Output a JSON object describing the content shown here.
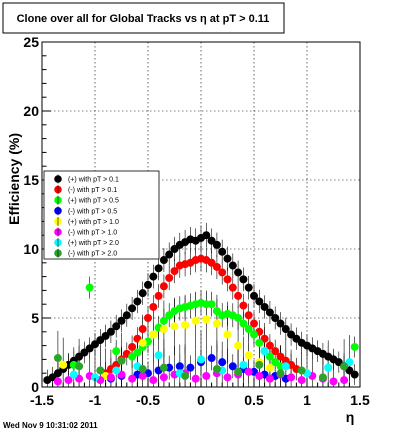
{
  "chart_data": {
    "type": "scatter",
    "title": "Clone  over all for Global Tracks vs η at pT > 0.11",
    "xlabel": "η",
    "ylabel": "Efficiency (%)",
    "xlim": [
      -1.5,
      1.5
    ],
    "ylim": [
      0,
      25
    ],
    "x_ticks": [
      -1.5,
      -1,
      -0.5,
      0,
      0.5,
      1,
      1.5
    ],
    "x_tick_labels": [
      "-1.5",
      "-1",
      "-0.5",
      "0",
      "0.5",
      "1",
      "1.5"
    ],
    "y_ticks": [
      0,
      5,
      10,
      15,
      20,
      25
    ],
    "y_tick_labels": [
      "0",
      "5",
      "10",
      "15",
      "20",
      "25"
    ],
    "grid": true,
    "legend_position": "middle-left",
    "footer": "Wed Nov  9 10:31:02 2011",
    "series": [
      {
        "name": "(+) with pT > 0.1",
        "color": "#000000",
        "x": [
          -1.45,
          -1.4,
          -1.35,
          -1.3,
          -1.25,
          -1.2,
          -1.15,
          -1.1,
          -1.05,
          -1.0,
          -0.95,
          -0.9,
          -0.85,
          -0.8,
          -0.75,
          -0.7,
          -0.65,
          -0.6,
          -0.55,
          -0.5,
          -0.45,
          -0.4,
          -0.35,
          -0.3,
          -0.25,
          -0.2,
          -0.15,
          -0.1,
          -0.05,
          0.0,
          0.05,
          0.1,
          0.15,
          0.2,
          0.25,
          0.3,
          0.35,
          0.4,
          0.45,
          0.5,
          0.55,
          0.6,
          0.65,
          0.7,
          0.75,
          0.8,
          0.85,
          0.9,
          0.95,
          1.0,
          1.05,
          1.1,
          1.15,
          1.2,
          1.25,
          1.3,
          1.35,
          1.4,
          1.45
        ],
        "y": [
          0.5,
          0.7,
          1.0,
          1.3,
          1.6,
          1.9,
          2.2,
          2.5,
          2.8,
          3.1,
          3.4,
          3.7,
          4.0,
          4.4,
          4.8,
          5.2,
          5.7,
          6.2,
          6.8,
          7.4,
          8.0,
          8.6,
          9.2,
          9.6,
          10.0,
          10.3,
          10.5,
          10.7,
          10.6,
          10.8,
          11.0,
          10.6,
          10.3,
          9.8,
          9.3,
          8.8,
          8.3,
          7.8,
          7.2,
          6.6,
          6.2,
          5.8,
          5.4,
          5.0,
          4.6,
          4.2,
          3.8,
          3.5,
          3.2,
          3.0,
          2.8,
          2.6,
          2.4,
          2.2,
          2.0,
          1.8,
          1.5,
          1.2,
          0.9
        ]
      },
      {
        "name": "(-) with pT > 0.1",
        "color": "#ff0000",
        "x": [
          -0.9,
          -0.85,
          -0.8,
          -0.75,
          -0.7,
          -0.65,
          -0.6,
          -0.55,
          -0.5,
          -0.45,
          -0.4,
          -0.35,
          -0.3,
          -0.25,
          -0.2,
          -0.15,
          -0.1,
          -0.05,
          0.0,
          0.05,
          0.1,
          0.15,
          0.2,
          0.25,
          0.3,
          0.35,
          0.4,
          0.45,
          0.5,
          0.55,
          0.6,
          0.65,
          0.7,
          0.75,
          0.8,
          0.85,
          0.9
        ],
        "y": [
          1.0,
          1.3,
          1.6,
          2.0,
          2.4,
          2.9,
          3.5,
          4.2,
          5.0,
          5.8,
          6.6,
          7.3,
          7.9,
          8.4,
          8.8,
          8.9,
          9.0,
          9.2,
          9.3,
          9.2,
          9.0,
          8.7,
          8.3,
          7.8,
          7.2,
          6.6,
          5.9,
          5.2,
          4.6,
          4.0,
          3.5,
          3.0,
          2.6,
          2.2,
          1.9,
          1.6,
          1.3
        ]
      },
      {
        "name": "(+) with pT > 0.5",
        "color": "#00ff00",
        "x": [
          -0.65,
          -0.6,
          -0.55,
          -0.5,
          -0.45,
          -0.4,
          -0.35,
          -0.3,
          -0.25,
          -0.2,
          -0.15,
          -0.1,
          -0.05,
          0.0,
          0.05,
          0.1,
          0.15,
          0.2,
          0.25,
          0.3,
          0.35,
          0.4,
          0.45,
          0.5,
          0.55,
          0.6,
          0.65,
          0.7,
          0.75,
          -1.05,
          -0.8,
          -1.2,
          1.2,
          1.45
        ],
        "y": [
          2.2,
          2.5,
          2.9,
          3.3,
          3.8,
          4.3,
          4.8,
          5.2,
          5.5,
          5.7,
          5.8,
          5.9,
          6.0,
          6.1,
          6.0,
          6.0,
          5.5,
          5.2,
          5.3,
          5.2,
          5.0,
          4.6,
          4.2,
          3.8,
          3.2,
          2.6,
          2.2,
          1.8,
          1.5,
          7.2,
          2.6,
          1.6,
          1.4,
          2.9
        ]
      },
      {
        "name": "(-) with pT > 0.5",
        "color": "#0000ff",
        "x": [
          -0.85,
          -0.75,
          -0.6,
          -0.5,
          -0.4,
          -0.3,
          -0.2,
          -0.1,
          0.0,
          0.1,
          0.2,
          0.3,
          0.4,
          0.5,
          0.6,
          0.7,
          0.8
        ],
        "y": [
          0.6,
          0.8,
          0.9,
          1.0,
          1.2,
          1.4,
          1.5,
          1.4,
          1.8,
          2.1,
          1.8,
          1.5,
          1.3,
          1.1,
          0.9,
          0.8,
          0.6
        ]
      },
      {
        "name": "(+) with pT > 1.0",
        "color": "#ffff00",
        "x": [
          -0.55,
          -0.45,
          -0.35,
          -0.25,
          -0.15,
          -0.05,
          0.05,
          0.15,
          0.25,
          0.35,
          0.45,
          0.55,
          0.65,
          -1.3,
          -0.9
        ],
        "y": [
          3.2,
          3.8,
          4.2,
          4.4,
          4.5,
          4.8,
          4.9,
          4.6,
          3.8,
          3.0,
          2.3,
          1.8,
          1.4,
          1.6,
          0.8
        ]
      },
      {
        "name": "(-) with pT > 1.0",
        "color": "#ff00ff",
        "x": [
          -1.35,
          -1.25,
          -1.15,
          -1.05,
          -0.95,
          -0.85,
          -0.75,
          -0.65,
          -0.55,
          -0.45,
          -0.35,
          -0.25,
          -0.15,
          -0.05,
          0.05,
          0.15,
          0.25,
          0.35,
          0.45,
          0.55,
          0.65,
          0.75,
          0.85,
          0.95,
          1.05,
          1.15,
          1.25,
          1.35
        ],
        "y": [
          0.4,
          0.5,
          0.6,
          0.8,
          0.5,
          0.7,
          0.9,
          0.6,
          0.8,
          0.5,
          0.7,
          0.9,
          1.0,
          0.6,
          0.8,
          1.0,
          0.7,
          0.9,
          1.1,
          0.8,
          0.6,
          0.9,
          0.7,
          0.5,
          0.8,
          0.6,
          0.4,
          0.5
        ]
      },
      {
        "name": "(+) with pT > 2.0",
        "color": "#00ffff",
        "x": [
          -1.2,
          -1.0,
          -0.8,
          -0.6,
          -0.4,
          -0.2,
          0.0,
          0.2,
          0.4,
          0.6,
          0.8,
          1.0,
          1.2,
          1.4
        ],
        "y": [
          0.9,
          0.7,
          1.2,
          1.5,
          2.3,
          1.0,
          2.0,
          1.2,
          1.6,
          2.6,
          1.5,
          1.0,
          1.4,
          1.8
        ]
      },
      {
        "name": "(-) with pT > 2.0",
        "color": "#2aa52a",
        "x": [
          -1.35,
          -1.15,
          -0.95,
          -0.75,
          -0.55,
          -0.35,
          -0.15,
          0.15,
          0.35,
          0.55,
          0.75,
          0.95,
          1.15,
          1.35
        ],
        "y": [
          2.1,
          1.5,
          1.2,
          1.9,
          1.3,
          1.4,
          0.8,
          1.3,
          1.1,
          1.6,
          1.0,
          1.2,
          0.7,
          1.5
        ]
      }
    ]
  }
}
